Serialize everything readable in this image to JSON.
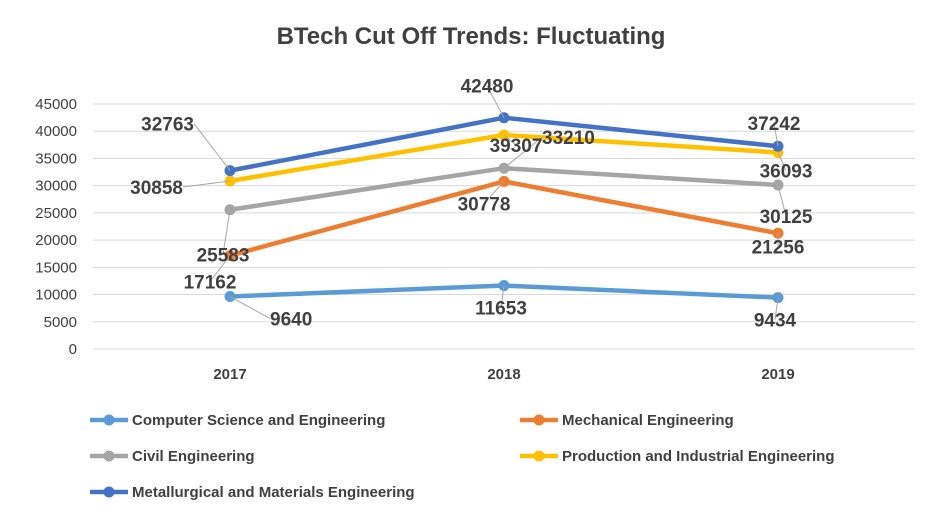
{
  "chart_data": {
    "type": "line",
    "title": "BTech Cut Off Trends: Fluctuating",
    "categories": [
      "2017",
      "2018",
      "2019"
    ],
    "xlabel": "",
    "ylabel": "",
    "ylim": [
      0,
      45000
    ],
    "yticks": [
      0,
      5000,
      10000,
      15000,
      20000,
      25000,
      30000,
      35000,
      40000,
      45000
    ],
    "grid": true,
    "legend_position": "bottom",
    "series": [
      {
        "name": "Computer Science and Engineering",
        "values": [
          9640,
          11653,
          9434
        ],
        "color": "#5b9bd5"
      },
      {
        "name": "Mechanical Engineering",
        "values": [
          17162,
          30778,
          21256
        ],
        "color": "#ed7d31"
      },
      {
        "name": "Civil Engineering",
        "values": [
          25583,
          33210,
          30125
        ],
        "color": "#a5a5a5"
      },
      {
        "name": "Production and Industrial Engineering",
        "values": [
          30858,
          39307,
          36093
        ],
        "color": "#ffc000"
      },
      {
        "name": "Metallurgical and Materials Engineering",
        "values": [
          32763,
          42480,
          37242
        ],
        "color": "#4472c4"
      }
    ]
  }
}
